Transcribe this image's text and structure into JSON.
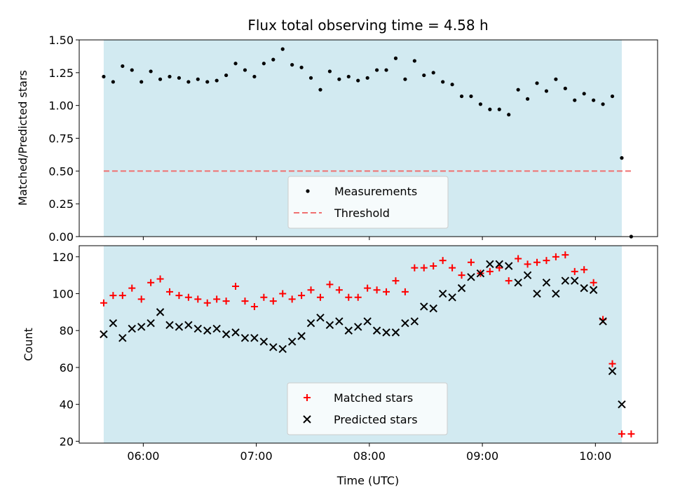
{
  "chart_data": [
    {
      "type": "scatter",
      "title": "Flux total observing time = 4.58 h",
      "xlabel": "",
      "ylabel": "Matched/Predicted stars",
      "ylim": [
        0,
        1.5
      ],
      "yticks": [
        "0.00",
        "0.25",
        "0.50",
        "0.75",
        "1.00",
        "1.25",
        "1.50"
      ],
      "xlim": [
        "05:26",
        "10:33"
      ],
      "shaded_interval": [
        "05:39",
        "10:14"
      ],
      "legend_position": "lower-center",
      "series": [
        {
          "name": "Measurements",
          "marker": "dot",
          "color": "#000000",
          "x": [
            "05:39",
            "05:44",
            "05:49",
            "05:54",
            "05:59",
            "06:04",
            "06:09",
            "06:14",
            "06:19",
            "06:24",
            "06:29",
            "06:34",
            "06:39",
            "06:44",
            "06:49",
            "06:54",
            "06:59",
            "07:04",
            "07:09",
            "07:14",
            "07:19",
            "07:24",
            "07:29",
            "07:34",
            "07:39",
            "07:44",
            "07:49",
            "07:54",
            "07:59",
            "08:04",
            "08:09",
            "08:14",
            "08:19",
            "08:24",
            "08:29",
            "08:34",
            "08:39",
            "08:44",
            "08:49",
            "08:54",
            "08:59",
            "09:04",
            "09:09",
            "09:14",
            "09:19",
            "09:24",
            "09:29",
            "09:34",
            "09:39",
            "09:44",
            "09:49",
            "09:54",
            "09:59",
            "10:04",
            "10:09",
            "10:14",
            "10:19"
          ],
          "y": [
            1.22,
            1.18,
            1.3,
            1.27,
            1.18,
            1.26,
            1.2,
            1.22,
            1.21,
            1.18,
            1.2,
            1.18,
            1.19,
            1.23,
            1.32,
            1.27,
            1.22,
            1.32,
            1.35,
            1.43,
            1.31,
            1.29,
            1.21,
            1.12,
            1.26,
            1.2,
            1.22,
            1.19,
            1.21,
            1.27,
            1.27,
            1.36,
            1.2,
            1.34,
            1.23,
            1.25,
            1.18,
            1.16,
            1.07,
            1.07,
            1.01,
            0.97,
            0.97,
            0.93,
            1.12,
            1.05,
            1.17,
            1.11,
            1.2,
            1.13,
            1.04,
            1.09,
            1.04,
            1.01,
            1.07,
            0.6,
            0.0
          ]
        },
        {
          "name": "Threshold",
          "style": "dashed",
          "color": "#f07070",
          "x": [
            "05:39",
            "10:19"
          ],
          "y": [
            0.5,
            0.5
          ]
        }
      ]
    },
    {
      "type": "scatter",
      "title": "",
      "xlabel": "Time (UTC)",
      "ylabel": "Count",
      "ylim": [
        19,
        126
      ],
      "yticks": [
        "20",
        "40",
        "60",
        "80",
        "100",
        "120"
      ],
      "xticks": [
        "06:00",
        "07:00",
        "08:00",
        "09:00",
        "10:00"
      ],
      "xlim": [
        "05:26",
        "10:33"
      ],
      "shaded_interval": [
        "05:39",
        "10:14"
      ],
      "legend_position": "lower-center",
      "series": [
        {
          "name": "Matched stars",
          "marker": "plus",
          "color": "#ff0000",
          "x": [
            "05:39",
            "05:44",
            "05:49",
            "05:54",
            "05:59",
            "06:04",
            "06:09",
            "06:14",
            "06:19",
            "06:24",
            "06:29",
            "06:34",
            "06:39",
            "06:44",
            "06:49",
            "06:54",
            "06:59",
            "07:04",
            "07:09",
            "07:14",
            "07:19",
            "07:24",
            "07:29",
            "07:34",
            "07:39",
            "07:44",
            "07:49",
            "07:54",
            "07:59",
            "08:04",
            "08:09",
            "08:14",
            "08:19",
            "08:24",
            "08:29",
            "08:34",
            "08:39",
            "08:44",
            "08:49",
            "08:54",
            "08:59",
            "09:04",
            "09:09",
            "09:14",
            "09:19",
            "09:24",
            "09:29",
            "09:34",
            "09:39",
            "09:44",
            "09:49",
            "09:54",
            "09:59",
            "10:04",
            "10:09",
            "10:14",
            "10:19"
          ],
          "y": [
            95,
            99,
            99,
            103,
            97,
            106,
            108,
            101,
            99,
            98,
            97,
            95,
            97,
            96,
            104,
            96,
            93,
            98,
            96,
            100,
            97,
            99,
            102,
            98,
            105,
            102,
            98,
            98,
            103,
            102,
            101,
            107,
            101,
            114,
            114,
            115,
            118,
            114,
            110,
            117,
            111,
            112,
            114,
            107,
            119,
            116,
            117,
            118,
            120,
            121,
            112,
            113,
            106,
            86,
            62,
            24,
            24
          ]
        },
        {
          "name": "Predicted stars",
          "marker": "x",
          "color": "#000000",
          "x": [
            "05:39",
            "05:44",
            "05:49",
            "05:54",
            "05:59",
            "06:04",
            "06:09",
            "06:14",
            "06:19",
            "06:24",
            "06:29",
            "06:34",
            "06:39",
            "06:44",
            "06:49",
            "06:54",
            "06:59",
            "07:04",
            "07:09",
            "07:14",
            "07:19",
            "07:24",
            "07:29",
            "07:34",
            "07:39",
            "07:44",
            "07:49",
            "07:54",
            "07:59",
            "08:04",
            "08:09",
            "08:14",
            "08:19",
            "08:24",
            "08:29",
            "08:34",
            "08:39",
            "08:44",
            "08:49",
            "08:54",
            "08:59",
            "09:04",
            "09:09",
            "09:14",
            "09:19",
            "09:24",
            "09:29",
            "09:34",
            "09:39",
            "09:44",
            "09:49",
            "09:54",
            "09:59",
            "10:04",
            "10:09",
            "10:14"
          ],
          "y": [
            78,
            84,
            76,
            81,
            82,
            84,
            90,
            83,
            82,
            83,
            81,
            80,
            81,
            78,
            79,
            76,
            76,
            74,
            71,
            70,
            74,
            77,
            84,
            87,
            83,
            85,
            80,
            82,
            85,
            80,
            79,
            79,
            84,
            85,
            93,
            92,
            100,
            98,
            103,
            109,
            111,
            116,
            116,
            115,
            106,
            110,
            100,
            106,
            100,
            107,
            107,
            103,
            102,
            85,
            58,
            40
          ]
        }
      ]
    }
  ]
}
